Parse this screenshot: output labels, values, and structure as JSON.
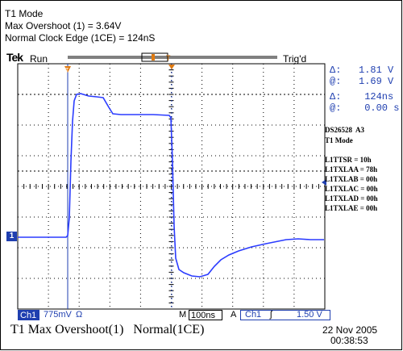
{
  "header": {
    "mode_line": "T1 Mode",
    "overshoot_line": "Max Overshoot (1) = 3.64V",
    "clock_line": "Normal Clock Edge (1CE) = 124nS"
  },
  "scope_top": {
    "brand": "Tek",
    "state": "Run",
    "trigger_state": "Trig'd"
  },
  "cursors": {
    "delta_v": "Δ:   1.81 V",
    "at_v": "@:   1.69 V",
    "delta_t": "Δ:    124ns",
    "at_t": "@:    0.00 s"
  },
  "device_info": {
    "device": "DS26528  A3",
    "mode": "T1 Mode",
    "registers": [
      "L1TTSR = 10h",
      "L1TXLAA = 78h",
      "L1TXLAB = 00h",
      "L1TXLAC = 00h",
      "L1TXLAD = 00h",
      "L1TXLAE = 00h"
    ]
  },
  "channel_marker": "1",
  "status_bar": {
    "channel": "Ch1",
    "volts_per_div": "775mV",
    "coupling_symbol": "Ω",
    "m_label": "M",
    "time_per_div": "100ns",
    "a_label": "A",
    "trigger_channel": "Ch1",
    "trigger_slope": "ʃ",
    "trigger_level": "1.50 V"
  },
  "footer": {
    "title": "T1 Max Overshoot(1)   Normal(1CE)",
    "date": "22 Nov 2005",
    "time": "00:38:53"
  },
  "colors": {
    "trace": "#2b3cff",
    "cursor": "#1f3fb0",
    "grid": "#000000",
    "marker_orange": "#e07a10"
  }
}
